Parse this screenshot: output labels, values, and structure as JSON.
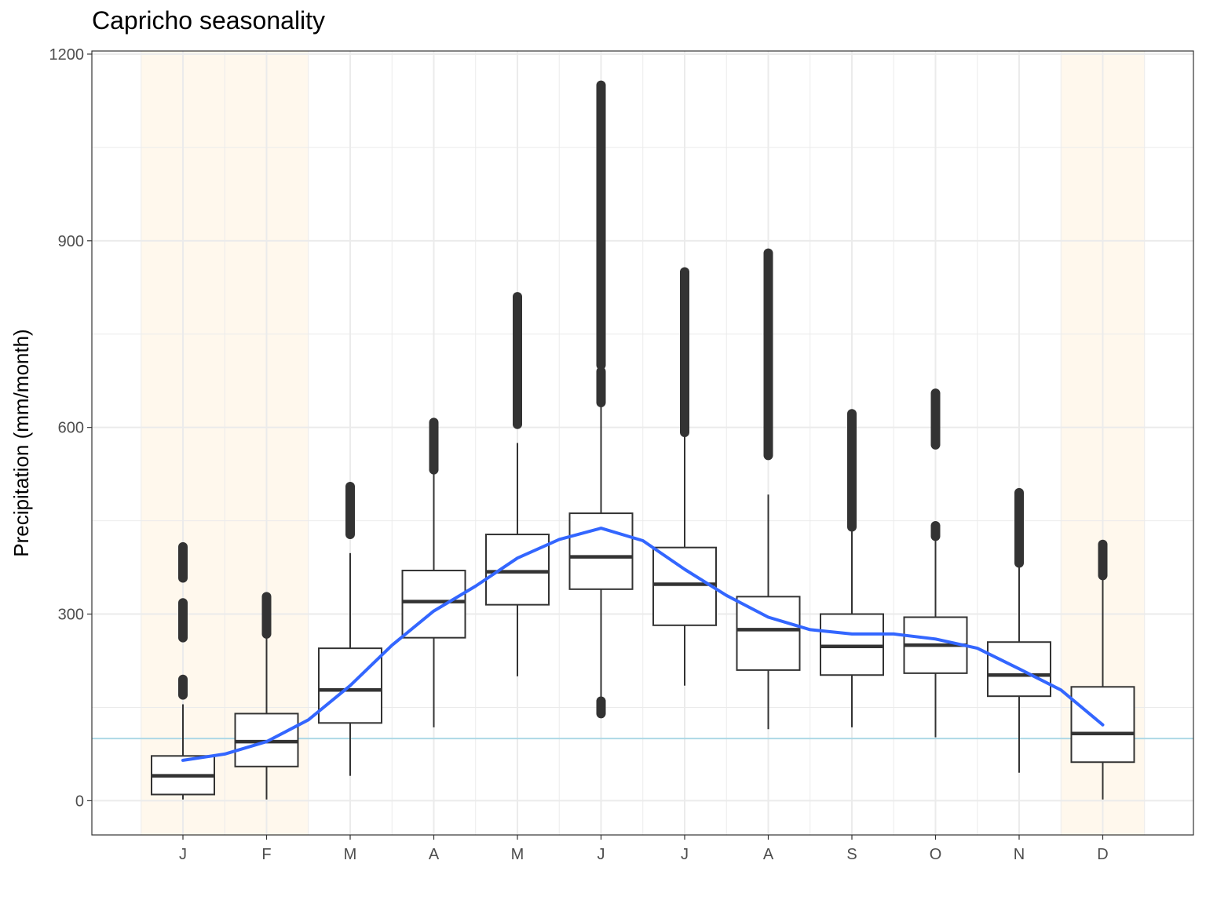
{
  "chart_data": {
    "type": "boxplot",
    "title": "Capricho seasonality",
    "xlabel": "",
    "ylabel": "Precipitation (mm/month)",
    "ylim": [
      -55,
      1205
    ],
    "yticks": [
      0,
      300,
      600,
      900,
      1200
    ],
    "categories": [
      "J",
      "F",
      "M",
      "A",
      "M",
      "J",
      "J",
      "A",
      "S",
      "O",
      "N",
      "D"
    ],
    "reference_line": {
      "y": 100,
      "color": "#add8e6"
    },
    "highlight_months": [
      1,
      2,
      12
    ],
    "highlight_color": "#fff8ed",
    "box_color": "#333333",
    "smooth_color": "#3366ff",
    "boxes": [
      {
        "month": "J",
        "whisker_low": 2,
        "q1": 10,
        "median": 40,
        "q3": 72,
        "whisker_high": 155,
        "outliers": [
          [
            170,
            195
          ],
          [
            262,
            318
          ],
          [
            358,
            408
          ]
        ]
      },
      {
        "month": "F",
        "whisker_low": 2,
        "q1": 55,
        "median": 95,
        "q3": 140,
        "whisker_high": 265,
        "outliers": [
          [
            268,
            328
          ]
        ]
      },
      {
        "month": "M",
        "whisker_low": 40,
        "q1": 125,
        "median": 178,
        "q3": 245,
        "whisker_high": 398,
        "outliers": [
          [
            428,
            505
          ]
        ]
      },
      {
        "month": "A",
        "whisker_low": 118,
        "q1": 262,
        "median": 320,
        "q3": 370,
        "whisker_high": 530,
        "outliers": [
          [
            532,
            608
          ]
        ]
      },
      {
        "month": "M",
        "whisker_low": 200,
        "q1": 315,
        "median": 368,
        "q3": 428,
        "whisker_high": 575,
        "outliers": [
          [
            605,
            810
          ]
        ]
      },
      {
        "month": "J",
        "whisker_low": 160,
        "q1": 340,
        "median": 392,
        "q3": 462,
        "whisker_high": 640,
        "outliers": [
          [
            140,
            160
          ],
          [
            640,
            690
          ],
          [
            700,
            1150
          ]
        ]
      },
      {
        "month": "J",
        "whisker_low": 185,
        "q1": 282,
        "median": 348,
        "q3": 407,
        "whisker_high": 595,
        "outliers": [
          [
            592,
            850
          ]
        ]
      },
      {
        "month": "A",
        "whisker_low": 115,
        "q1": 210,
        "median": 275,
        "q3": 328,
        "whisker_high": 492,
        "outliers": [
          [
            555,
            880
          ]
        ]
      },
      {
        "month": "S",
        "whisker_low": 118,
        "q1": 202,
        "median": 248,
        "q3": 300,
        "whisker_high": 440,
        "outliers": [
          [
            440,
            622
          ]
        ]
      },
      {
        "month": "O",
        "whisker_low": 102,
        "q1": 205,
        "median": 250,
        "q3": 295,
        "whisker_high": 428,
        "outliers": [
          [
            425,
            442
          ],
          [
            572,
            655
          ]
        ]
      },
      {
        "month": "N",
        "whisker_low": 45,
        "q1": 168,
        "median": 202,
        "q3": 255,
        "whisker_high": 382,
        "outliers": [
          [
            382,
            495
          ]
        ]
      },
      {
        "month": "D",
        "whisker_low": 2,
        "q1": 62,
        "median": 108,
        "q3": 183,
        "whisker_high": 358,
        "outliers": [
          [
            362,
            412
          ]
        ]
      }
    ],
    "smooth_line": {
      "x": [
        1,
        1.5,
        2,
        2.5,
        3,
        3.5,
        4,
        4.5,
        5,
        5.5,
        6,
        6.5,
        7,
        7.5,
        8,
        8.5,
        9,
        9.5,
        10,
        10.5,
        11,
        11.5,
        12
      ],
      "y": [
        65,
        75,
        95,
        130,
        185,
        250,
        305,
        345,
        390,
        420,
        438,
        418,
        372,
        330,
        295,
        275,
        268,
        268,
        260,
        245,
        212,
        178,
        122
      ]
    }
  }
}
